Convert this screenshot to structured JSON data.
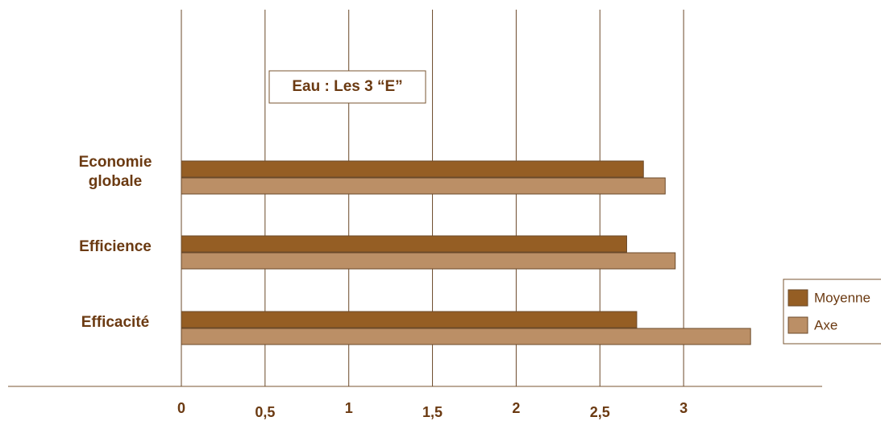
{
  "chart_data": {
    "type": "hbar",
    "title": "Eau : Les 3 “E”",
    "categories": [
      "Economie globale",
      "Efficience",
      "Efficacité"
    ],
    "series": [
      {
        "name": "Moyenne",
        "color": "#955e24",
        "values": [
          2.76,
          2.66,
          2.72
        ]
      },
      {
        "name": "Axe",
        "color": "#bb8f66",
        "values": [
          2.89,
          2.95,
          3.4
        ]
      }
    ],
    "xlim": [
      0,
      3.8
    ],
    "xticks": [
      0,
      {
        "value": 0.5,
        "label": "0,5"
      },
      1,
      {
        "value": 1.5,
        "label": "1,5"
      },
      2,
      {
        "value": 2.5,
        "label": "2,5"
      },
      3
    ],
    "grid": true,
    "legend": "right"
  }
}
